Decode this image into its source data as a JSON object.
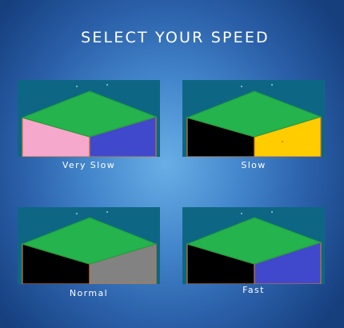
{
  "title": "SELECT YOUR SPEED",
  "colors": {
    "tile_background": "#0d6784",
    "top_face": "#24b34c",
    "edge": "#c8762c"
  },
  "options": [
    {
      "label": "Very Slow",
      "left_face_color": "#f5a8cc",
      "right_face_color": "#4048cc"
    },
    {
      "label": "Slow",
      "left_face_color": "#000000",
      "right_face_color": "#ffcc00"
    },
    {
      "label": "Normal",
      "left_face_color": "#000000",
      "right_face_color": "#828282"
    },
    {
      "label": "Fast",
      "left_face_color": "#000000",
      "right_face_color": "#4048cc"
    }
  ]
}
